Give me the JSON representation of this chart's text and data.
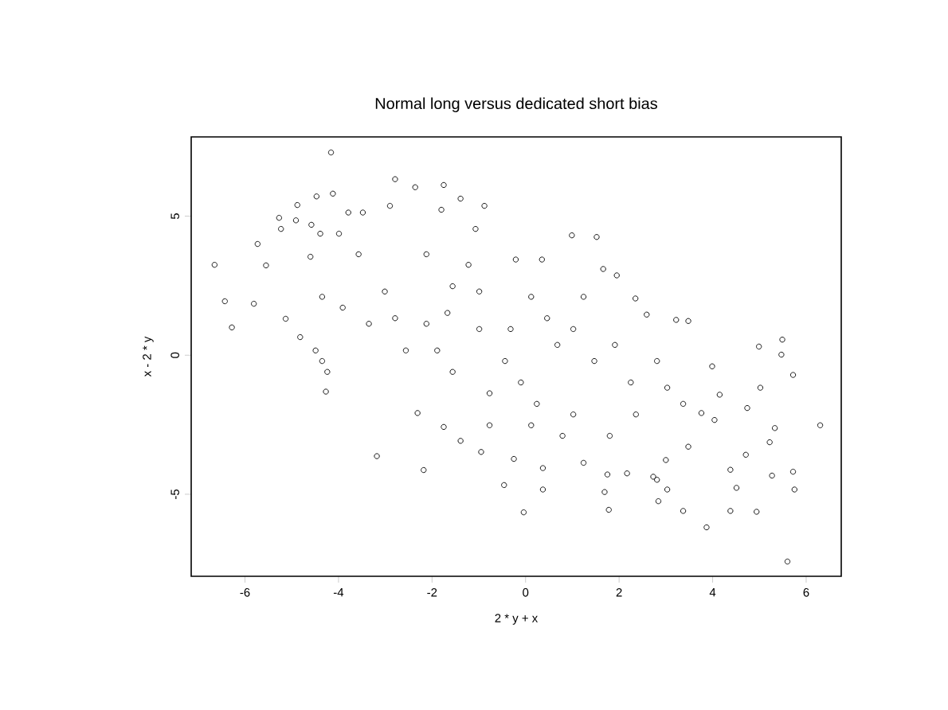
{
  "chart_data": {
    "type": "scatter",
    "title": "Normal long versus dedicated short bias",
    "xlabel": "2 * y + x",
    "ylabel": "x - 2 * y",
    "xlim": [
      -7.15,
      6.75
    ],
    "ylim": [
      -7.95,
      7.85
    ],
    "xticks": [
      -6,
      -4,
      -2,
      0,
      2,
      4,
      6
    ],
    "yticks": [
      -5,
      0,
      5
    ],
    "marker": "circle",
    "series": [
      {
        "color": "#000000",
        "x": [
          -6.65,
          -6.43,
          -6.28,
          -5.73,
          -5.81,
          -5.55,
          -5.27,
          -5.23,
          -4.88,
          -4.91,
          -5.13,
          -4.82,
          -4.47,
          -4.16,
          -4.12,
          -4.58,
          -4.39,
          -4.6,
          -4.27,
          -4.35,
          -4.49,
          -3.99,
          -3.79,
          -3.48,
          -3.18,
          -2.9,
          -2.79,
          -2.36,
          -2.18,
          -2.31,
          -1.75,
          -1.8,
          -1.39,
          -0.88,
          -1.07,
          -1.75,
          -1.39,
          -0.95,
          -0.46,
          -0.25,
          -0.04,
          0.37,
          0.37,
          0.99,
          1.52,
          1.66,
          1.95,
          1.75,
          1.78,
          2.17,
          2.35,
          2.59,
          2.73,
          2.84,
          3.22,
          3.48,
          3.37,
          3.87,
          3.99,
          4.38,
          4.94,
          4.99,
          5.02,
          5.49,
          5.47,
          5.72,
          6.3,
          5.6,
          5.72,
          5.75,
          5.27,
          5.22,
          5.33,
          4.74,
          4.71,
          4.38,
          4.51,
          4.15,
          3.76,
          3.48,
          3.03,
          2.81,
          3.0,
          2.36,
          1.69,
          1.24,
          0.79,
          0.24,
          -0.77,
          -1.56,
          -2.56,
          -3.35,
          -3.91,
          -3.57,
          -2.12,
          -1.22,
          -0.21,
          0.35,
          -0.32,
          -0.99,
          -1.67,
          -2.12,
          -2.79,
          -0.44,
          0.68,
          1.02,
          1.24,
          1.47,
          1.91,
          2.25,
          2.81,
          3.03,
          3.37,
          4.04,
          0.12,
          0.46,
          -0.99,
          -1.56,
          -0.77,
          0.12,
          1.02,
          1.8,
          -0.1,
          -1.89,
          -3.01,
          -4.35,
          -4.24
        ],
        "values": [
          3.25,
          1.94,
          1.0,
          4.0,
          1.85,
          3.23,
          4.94,
          4.54,
          5.4,
          4.85,
          1.31,
          0.65,
          5.71,
          7.29,
          5.81,
          4.69,
          4.37,
          3.54,
          -1.31,
          -0.21,
          0.17,
          4.37,
          5.13,
          5.13,
          -3.63,
          5.37,
          6.33,
          6.04,
          -4.13,
          -2.08,
          6.12,
          5.23,
          5.63,
          5.37,
          4.54,
          -2.58,
          -3.08,
          -3.48,
          -4.67,
          -3.73,
          -5.65,
          -4.83,
          -4.06,
          4.31,
          4.25,
          3.1,
          2.87,
          -4.29,
          -5.56,
          -4.25,
          2.04,
          1.46,
          -4.37,
          -5.25,
          1.27,
          1.23,
          -5.6,
          -6.19,
          -0.4,
          -5.6,
          -5.63,
          0.31,
          -1.17,
          0.56,
          0.02,
          -0.71,
          -2.52,
          -7.42,
          -4.19,
          -4.83,
          -4.33,
          -3.13,
          -2.62,
          -1.9,
          -3.58,
          -4.12,
          -4.77,
          -1.42,
          -2.08,
          -3.29,
          -4.83,
          -4.48,
          -3.77,
          -2.13,
          -4.92,
          -3.87,
          -2.9,
          -1.75,
          -1.37,
          -0.6,
          0.17,
          1.13,
          1.71,
          3.63,
          3.63,
          3.25,
          3.44,
          3.44,
          0.94,
          0.94,
          1.52,
          1.13,
          1.33,
          -0.21,
          0.37,
          0.94,
          2.1,
          -0.21,
          0.37,
          -0.98,
          -0.21,
          -1.17,
          -1.75,
          -2.33,
          2.1,
          1.33,
          2.29,
          2.48,
          -2.52,
          -2.52,
          -2.13,
          -2.9,
          -0.98,
          0.17,
          2.29,
          2.1,
          -0.6
        ]
      }
    ]
  }
}
